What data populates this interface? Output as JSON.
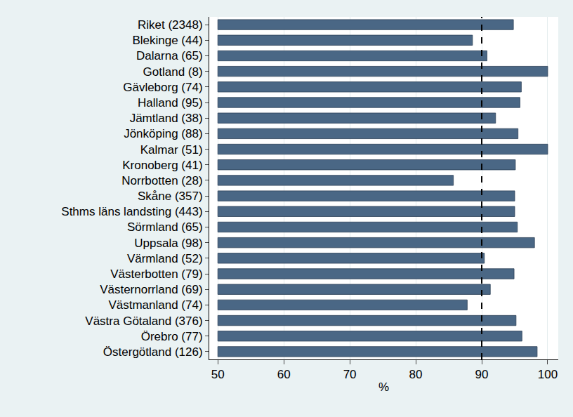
{
  "chart_data": {
    "type": "bar",
    "orientation": "horizontal",
    "x_label": "%",
    "categories": [
      "Riket (2348)",
      "Blekinge (44)",
      "Dalarna (65)",
      "Gotland (8)",
      "Gävleborg (74)",
      "Halland (95)",
      "Jämtland (38)",
      "Jönköping (88)",
      "Kalmar (51)",
      "Kronoberg (41)",
      "Norrbotten (28)",
      "Skåne (357)",
      "Sthms läns landsting (443)",
      "Sörmland (65)",
      "Uppsala (98)",
      "Värmland (52)",
      "Västerbotten (79)",
      "Västernorrland (69)",
      "Västmanland (74)",
      "Västra Götaland (376)",
      "Örebro (77)",
      "Östergötland (126)"
    ],
    "values": [
      94.8,
      88.6,
      90.8,
      100,
      96,
      95.8,
      92.1,
      95.5,
      100,
      95.1,
      85.7,
      95,
      95,
      95.4,
      98,
      90.4,
      94.9,
      91.3,
      87.8,
      95.2,
      96.1,
      98.4
    ],
    "bar_base": 50,
    "reference_line": 90,
    "color": "#4a6785",
    "xlim": [
      48.7,
      101.6
    ],
    "xticks": [
      50,
      60,
      70,
      80,
      90,
      100
    ],
    "grid": true
  }
}
